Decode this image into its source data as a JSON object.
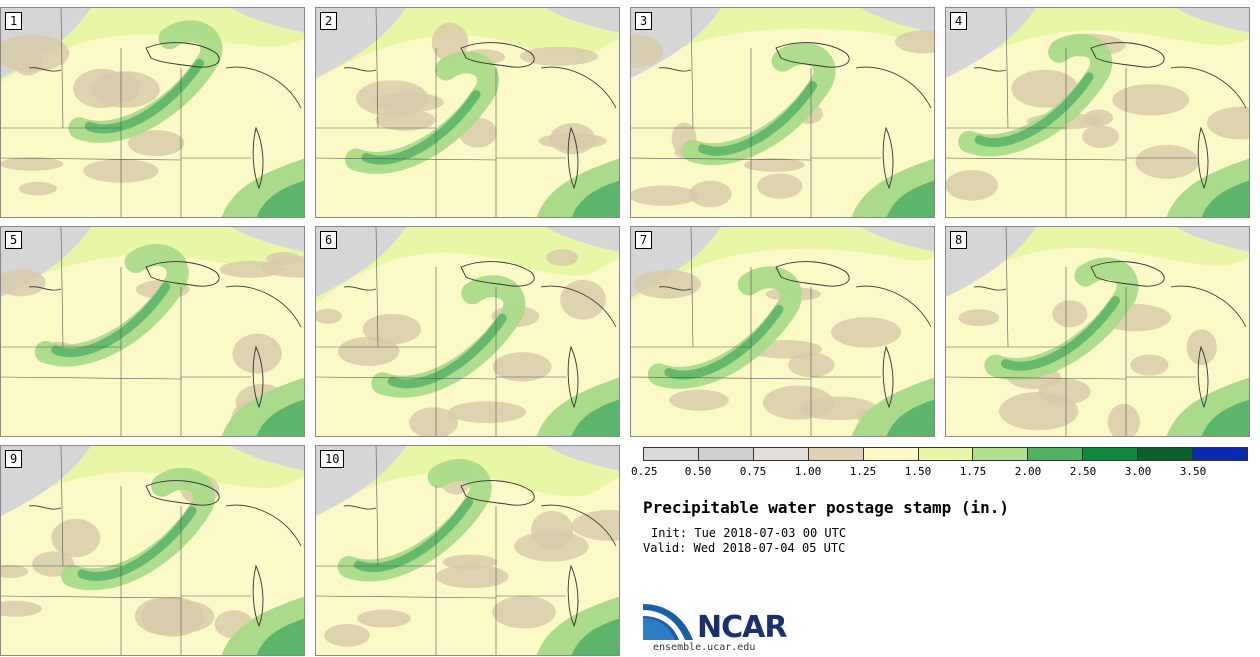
{
  "panels": [
    {
      "label": "1"
    },
    {
      "label": "2"
    },
    {
      "label": "3"
    },
    {
      "label": "4"
    },
    {
      "label": "5"
    },
    {
      "label": "6"
    },
    {
      "label": "7"
    },
    {
      "label": "8"
    },
    {
      "label": "9"
    },
    {
      "label": "10"
    }
  ],
  "colorbar": {
    "colors": [
      "#d9d9d9",
      "#cfcfcf",
      "#e3e0dc",
      "#ddd0b5",
      "#fbf9c8",
      "#e8f7a6",
      "#b0df8e",
      "#4eb063",
      "#0f8a3d",
      "#0b5e2d",
      "#0c2ab0"
    ],
    "ticks": [
      "0.25",
      "0.50",
      "0.75",
      "1.00",
      "1.25",
      "1.50",
      "1.75",
      "2.00",
      "2.50",
      "3.00",
      "3.50"
    ]
  },
  "legend_colors": {
    "gray": "#d6d6d6",
    "tan": "#d9cbaa",
    "cream": "#fbf9c8",
    "lightgreen": "#e8f7a6",
    "green": "#aadb8a",
    "mid": "#5cb56a",
    "dark": "#1f8c45"
  },
  "title": "Precipitable water postage stamp (in.)",
  "init_label": "Init:",
  "init_value": "Tue 2018-07-03 00 UTC",
  "valid_label": "Valid:",
  "valid_value": "Wed 2018-07-04 05 UTC",
  "logo_text": "NCAR",
  "url": "ensemble.ucar.edu"
}
